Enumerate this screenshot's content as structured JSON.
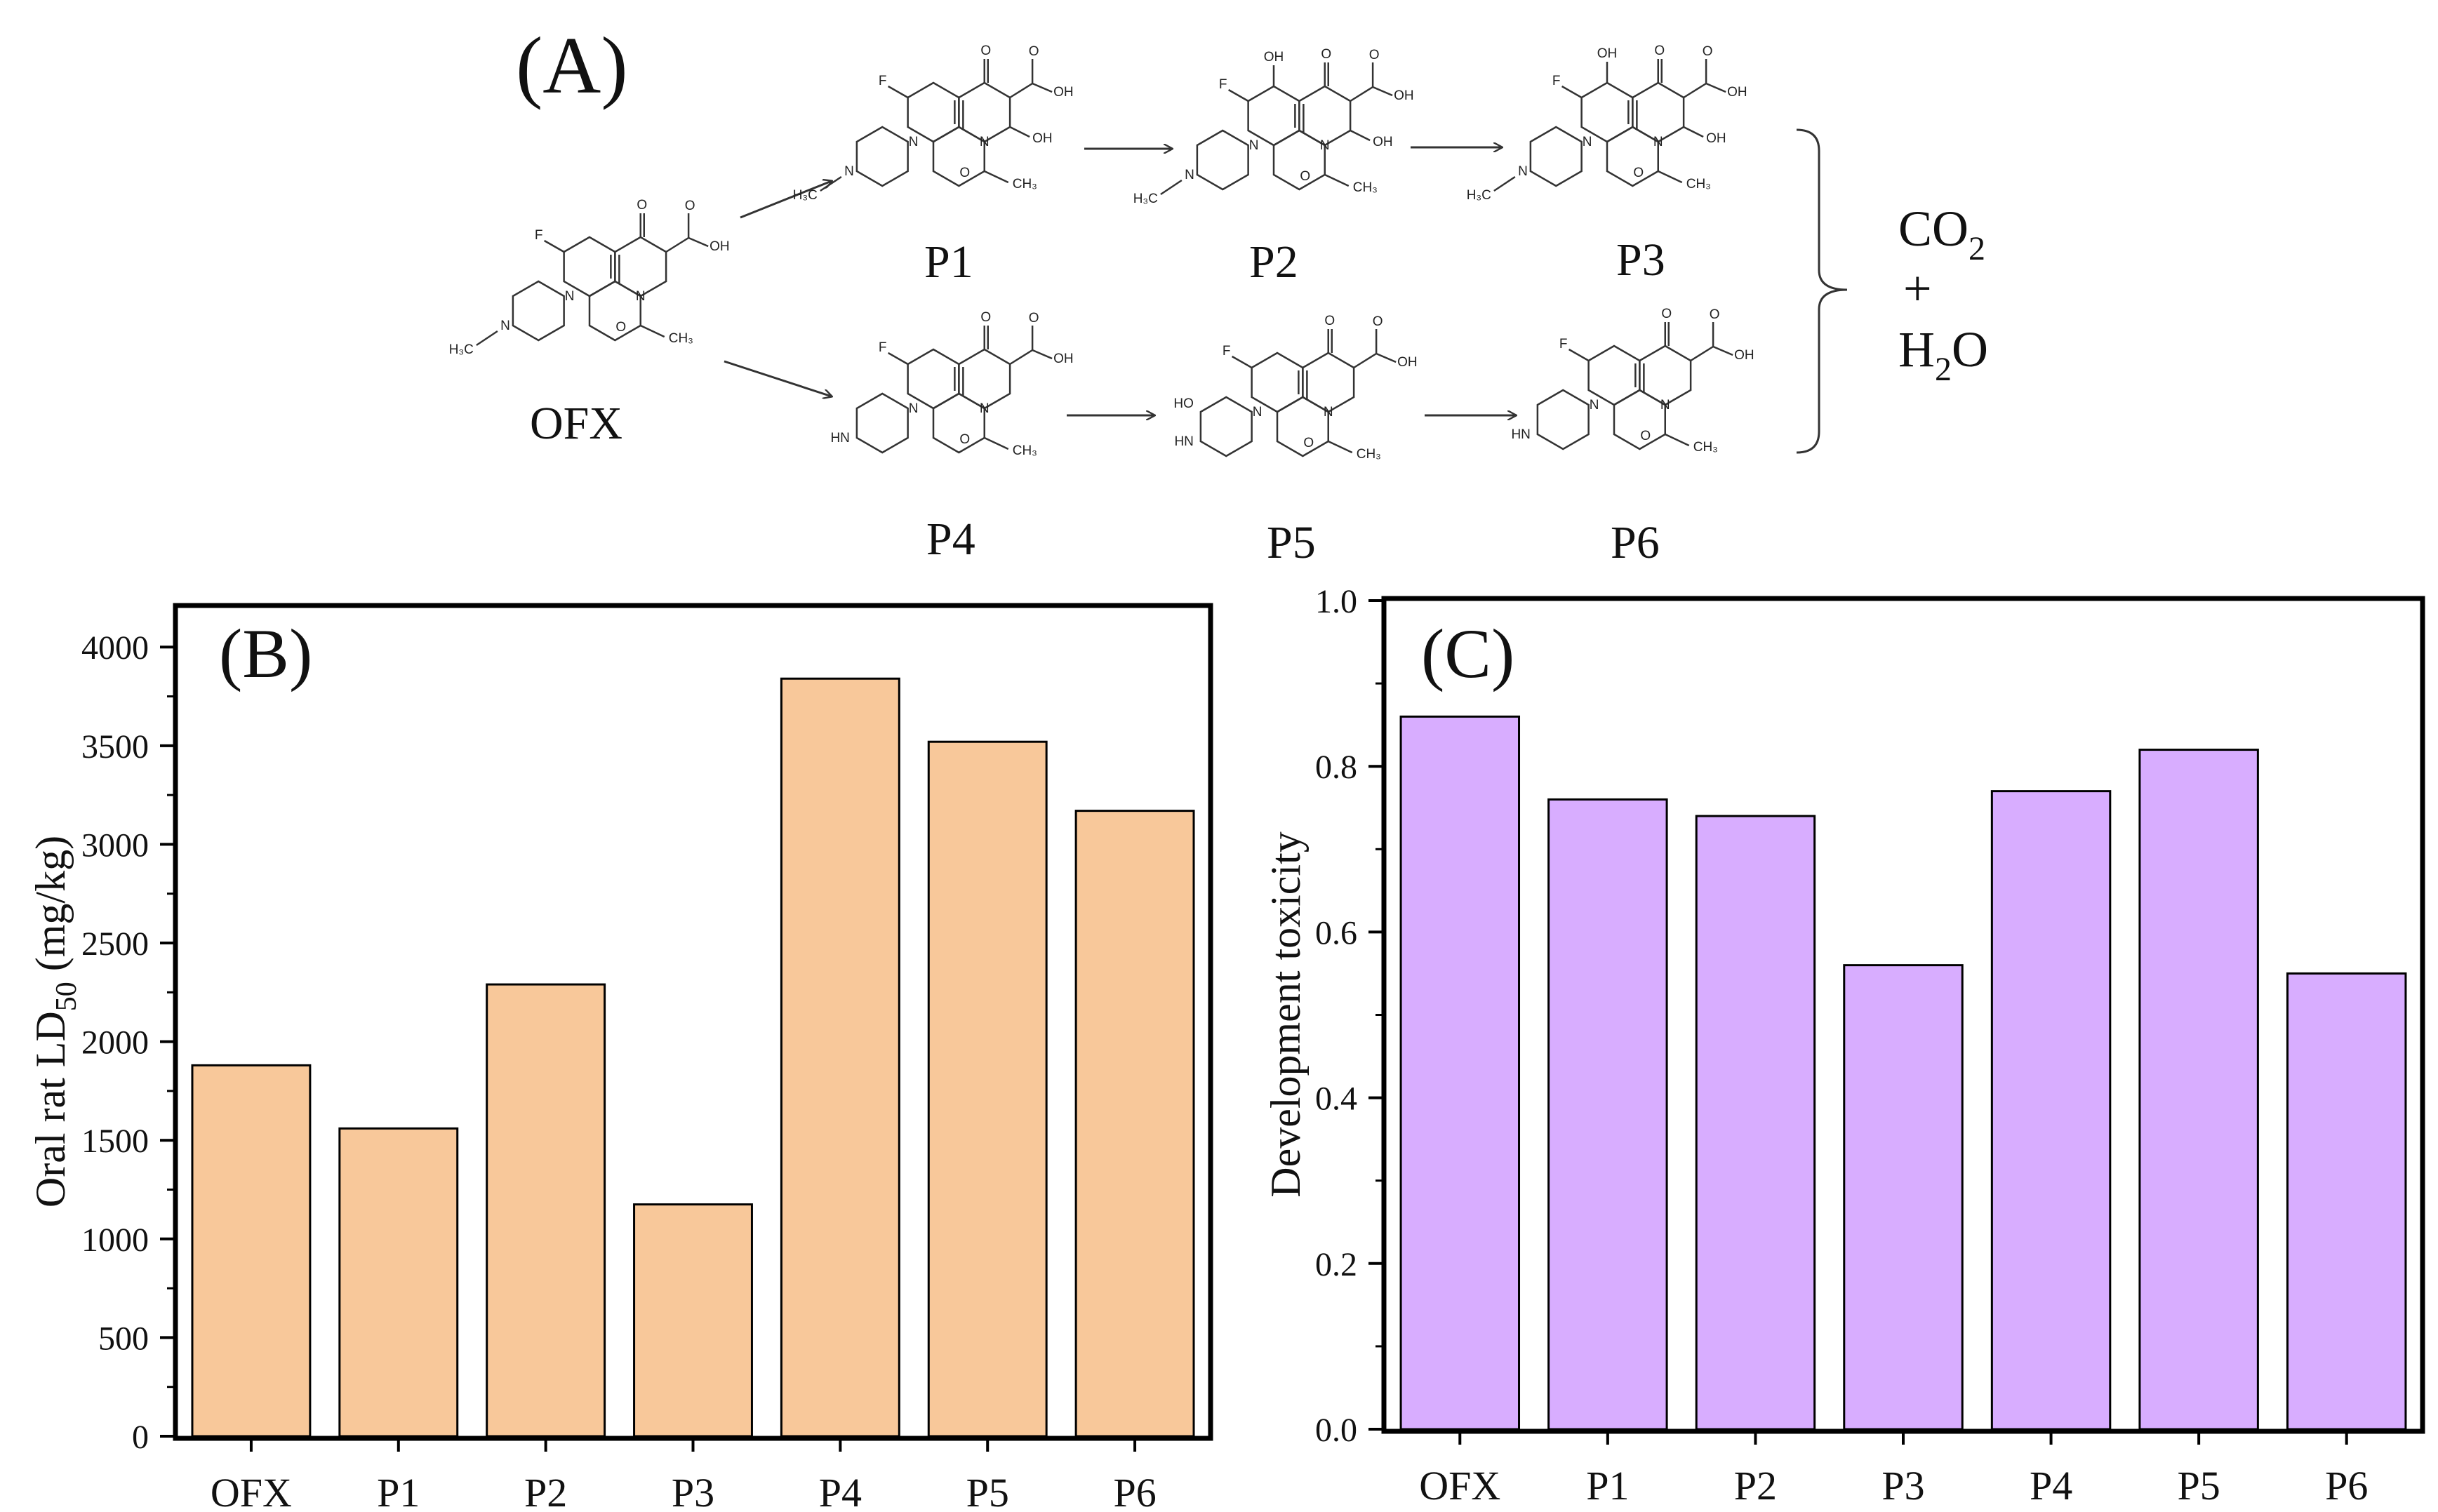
{
  "panel_a": {
    "label": "(A)",
    "compounds": {
      "OFX": "OFX",
      "P1": "P1",
      "P2": "P2",
      "P3": "P3",
      "P4": "P4",
      "P5": "P5",
      "P6": "P6"
    },
    "products": {
      "co2": "CO",
      "co2_sub": "2",
      "plus": "+",
      "h2o_h": "H",
      "h2o_sub": "2",
      "h2o_o": "O"
    },
    "atoms": {
      "F": "F",
      "O": "O",
      "OH": "OH",
      "N": "N",
      "NH": "HN",
      "HO": "HO",
      "H3C": "H₃C",
      "CH3": "CH₃"
    }
  },
  "chart_data": [
    {
      "panel_label": "(B)",
      "type": "bar",
      "categories": [
        "OFX",
        "P1",
        "P2",
        "P3",
        "P4",
        "P5",
        "P6"
      ],
      "values": [
        1880,
        1560,
        2290,
        1175,
        3840,
        3520,
        3170
      ],
      "ylabel_main": "Oral rat LD",
      "ylabel_sub": "50",
      "ylabel_unit": " (mg/kg)",
      "ylim": [
        0,
        4200
      ],
      "yticks": [
        0,
        500,
        1000,
        1500,
        2000,
        2500,
        3000,
        3500,
        4000
      ],
      "ytick_labels": [
        "0",
        "500",
        "1000",
        "1500",
        "2000",
        "2500",
        "3000",
        "3500",
        "4000"
      ],
      "bar_color": "#f8c89a"
    },
    {
      "panel_label": "(C)",
      "type": "bar",
      "categories": [
        "OFX",
        "P1",
        "P2",
        "P3",
        "P4",
        "P5",
        "P6"
      ],
      "values": [
        0.86,
        0.76,
        0.74,
        0.56,
        0.77,
        0.82,
        0.55
      ],
      "ylabel": "Development toxicity",
      "ylim": [
        0,
        1.0
      ],
      "yticks": [
        0,
        0.2,
        0.4,
        0.6,
        0.8,
        1.0
      ],
      "ytick_labels": [
        "0.0",
        "0.2",
        "0.4",
        "0.6",
        "0.8",
        "1.0"
      ],
      "bar_color": "#d8adff"
    }
  ]
}
